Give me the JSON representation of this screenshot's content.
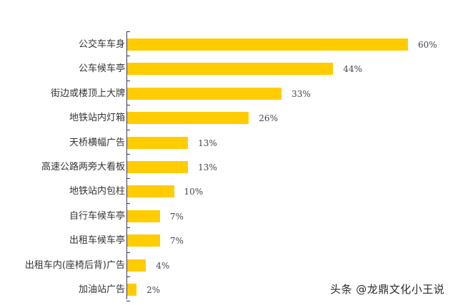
{
  "chart_data": {
    "type": "bar",
    "orientation": "horizontal",
    "title": "",
    "xlabel": "",
    "ylabel": "",
    "categories": [
      "公交车车身",
      "公车候车亭",
      "街边或楼顶上大牌",
      "地铁站内灯箱",
      "天桥横幅广告",
      "高速公路两旁大看板",
      "地铁站内包柱",
      "自行车候车亭",
      "出租车候车亭",
      "出租车内(座椅后背)广告",
      "加油站广告"
    ],
    "values": [
      60,
      44,
      33,
      26,
      13,
      13,
      10,
      7,
      7,
      4,
      2
    ],
    "labels": [
      "60%",
      "44%",
      "33%",
      "26%",
      "13%",
      "13%",
      "10%",
      "7%",
      "7%",
      "4%",
      "2%"
    ],
    "unit": "%",
    "xlim": [
      0,
      60
    ],
    "grid": false,
    "legend": null,
    "bar_color": "#FFCC00"
  },
  "watermark": "头条 @龙鼎文化小王说",
  "colors": {
    "bar": "#FFCC00",
    "axis": "#3a3a55",
    "text": "#333333"
  }
}
